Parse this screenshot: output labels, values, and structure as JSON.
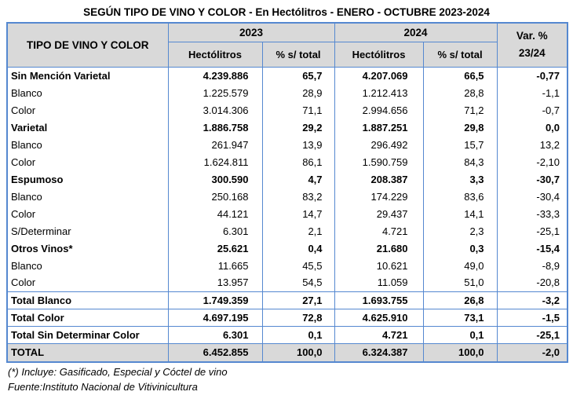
{
  "title": "SEGÚN TIPO DE VINO Y COLOR - En Hectólitros - ENERO - OCTUBRE 2023-2024",
  "table": {
    "corner_header": "TIPO DE VINO Y COLOR",
    "year_headers": [
      "2023",
      "2024"
    ],
    "sub_headers": [
      "Hectólitros",
      "% s/ total",
      "Hectólitros",
      "% s/ total"
    ],
    "var_header": {
      "line1": "Var. %",
      "line2": "23/24"
    },
    "rows": [
      {
        "label": "Sin Mención Varietal",
        "values": [
          "4.239.886",
          "65,7",
          "4.207.069",
          "66,5",
          "-0,77"
        ],
        "style": "category"
      },
      {
        "label": "Blanco",
        "values": [
          "1.225.579",
          "28,9",
          "1.212.413",
          "28,8",
          "-1,1"
        ],
        "style": "item"
      },
      {
        "label": "Color",
        "values": [
          "3.014.306",
          "71,1",
          "2.994.656",
          "71,2",
          "-0,7"
        ],
        "style": "item"
      },
      {
        "label": "Varietal",
        "values": [
          "1.886.758",
          "29,2",
          "1.887.251",
          "29,8",
          "0,0"
        ],
        "style": "category"
      },
      {
        "label": "Blanco",
        "values": [
          "261.947",
          "13,9",
          "296.492",
          "15,7",
          "13,2"
        ],
        "style": "item"
      },
      {
        "label": "Color",
        "values": [
          "1.624.811",
          "86,1",
          "1.590.759",
          "84,3",
          "-2,10"
        ],
        "style": "item"
      },
      {
        "label": "Espumoso",
        "values": [
          "300.590",
          "4,7",
          "208.387",
          "3,3",
          "-30,7"
        ],
        "style": "category"
      },
      {
        "label": "Blanco",
        "values": [
          "250.168",
          "83,2",
          "174.229",
          "83,6",
          "-30,4"
        ],
        "style": "item"
      },
      {
        "label": "Color",
        "values": [
          "44.121",
          "14,7",
          "29.437",
          "14,1",
          "-33,3"
        ],
        "style": "item"
      },
      {
        "label": "S/Determinar",
        "values": [
          "6.301",
          "2,1",
          "4.721",
          "2,3",
          "-25,1"
        ],
        "style": "item"
      },
      {
        "label": "Otros Vinos*",
        "values": [
          "25.621",
          "0,4",
          "21.680",
          "0,3",
          "-15,4"
        ],
        "style": "category"
      },
      {
        "label": "Blanco",
        "values": [
          "11.665",
          "45,5",
          "10.621",
          "49,0",
          "-8,9"
        ],
        "style": "item"
      },
      {
        "label": "Color",
        "values": [
          "13.957",
          "54,5",
          "11.059",
          "51,0",
          "-20,8"
        ],
        "style": "item"
      },
      {
        "label": "Total Blanco",
        "values": [
          "1.749.359",
          "27,1",
          "1.693.755",
          "26,8",
          "-3,2"
        ],
        "style": "total"
      },
      {
        "label": "Total Color",
        "values": [
          "4.697.195",
          "72,8",
          "4.625.910",
          "73,1",
          "-1,5"
        ],
        "style": "total"
      },
      {
        "label": "Total Sin Determinar Color",
        "values": [
          "6.301",
          "0,1",
          "4.721",
          "0,1",
          "-25,1"
        ],
        "style": "total"
      },
      {
        "label": "TOTAL",
        "values": [
          "6.452.855",
          "100,0",
          "6.324.387",
          "100,0",
          "-2,0"
        ],
        "style": "grand"
      }
    ]
  },
  "footnotes": {
    "note": "(*) Incluye: Gasificado, Especial y Cóctel de vino",
    "source": "Fuente:Instituto Nacional de Vitivinicultura"
  },
  "colors": {
    "border_blue": "#5588d0",
    "header_bg": "#d9d9d9"
  }
}
